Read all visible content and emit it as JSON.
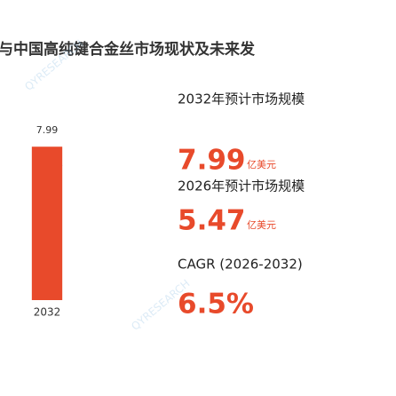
{
  "chart_data": {
    "type": "bar",
    "title": "与中国高纯键合金丝市场现状及未来发",
    "categories": [
      "2032"
    ],
    "values": [
      7.99
    ],
    "color": "#e84a2b",
    "ylim": [
      0,
      8
    ]
  },
  "stats": [
    {
      "label": "2032年预计市场规模",
      "value": "7.99",
      "unit": "亿美元"
    },
    {
      "label": "2026年预计市场规模",
      "value": "5.47",
      "unit": "亿美元"
    },
    {
      "label": "CAGR (2026-2032)",
      "value": "6.5%"
    }
  ],
  "watermark": "QYRESEARCH"
}
